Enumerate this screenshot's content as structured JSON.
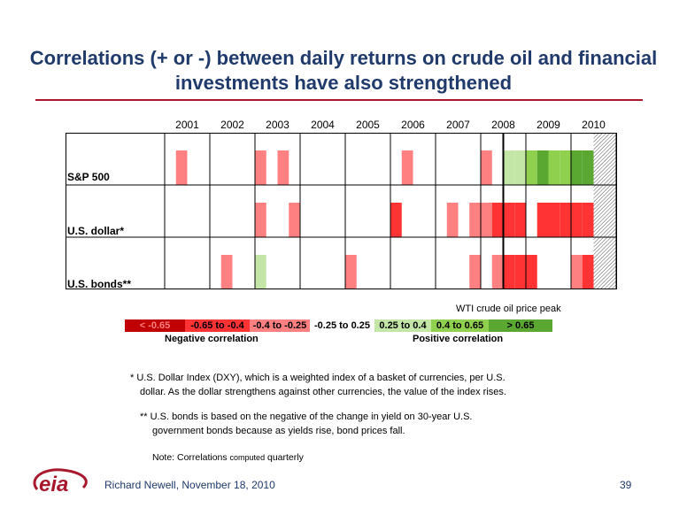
{
  "title": "Correlations (+ or -) between daily returns on crude oil and financial investments have also strengthened",
  "years": [
    "2001",
    "2002",
    "2003",
    "2004",
    "2005",
    "2006",
    "2007",
    "2008",
    "2009",
    "2010"
  ],
  "rows": [
    {
      "label": "S&P 500"
    },
    {
      "label": "U.S. dollar*"
    },
    {
      "label": "U.S. bonds**"
    }
  ],
  "colors": {
    "lt_neg065": "#c00000",
    "neg065_neg04": "#ff3333",
    "neg04_neg025": "#ff8080",
    "neg025_025": "#ffffff",
    "p025_04": "#c3e6a7",
    "p04_065": "#8fd14f",
    "gt065": "#5aa832"
  },
  "chart_data": {
    "type": "heatmap",
    "x": [
      "2001",
      "2002",
      "2003",
      "2004",
      "2005",
      "2006",
      "2007",
      "2008",
      "2009",
      "2010"
    ],
    "y": [
      "S&P 500",
      "U.S. dollar*",
      "U.S. bonds**"
    ],
    "quarters_per_year": 4,
    "cells": [
      {
        "row": "S&P 500",
        "quarter": "2001Q2",
        "category": "-0.4 to -0.25"
      },
      {
        "row": "S&P 500",
        "quarter": "2003Q1",
        "category": "-0.4 to -0.25"
      },
      {
        "row": "S&P 500",
        "quarter": "2003Q3",
        "category": "-0.4 to -0.25"
      },
      {
        "row": "S&P 500",
        "quarter": "2006Q2",
        "category": "-0.4 to -0.25"
      },
      {
        "row": "S&P 500",
        "quarter": "2008Q1",
        "category": "-0.4 to -0.25"
      },
      {
        "row": "S&P 500",
        "quarter": "2008Q3",
        "category": "0.25 to 0.4"
      },
      {
        "row": "S&P 500",
        "quarter": "2008Q4",
        "category": "0.25 to 0.4"
      },
      {
        "row": "S&P 500",
        "quarter": "2009Q1",
        "category": "0.4 to 0.65"
      },
      {
        "row": "S&P 500",
        "quarter": "2009Q2",
        "category": "> 0.65"
      },
      {
        "row": "S&P 500",
        "quarter": "2009Q3",
        "category": "0.4 to 0.65"
      },
      {
        "row": "S&P 500",
        "quarter": "2009Q4",
        "category": "0.4 to 0.65"
      },
      {
        "row": "S&P 500",
        "quarter": "2010Q1",
        "category": "> 0.65"
      },
      {
        "row": "S&P 500",
        "quarter": "2010Q2",
        "category": "> 0.65"
      },
      {
        "row": "U.S. dollar*",
        "quarter": "2003Q1",
        "category": "-0.4 to -0.25"
      },
      {
        "row": "U.S. dollar*",
        "quarter": "2003Q4",
        "category": "-0.4 to -0.25"
      },
      {
        "row": "U.S. dollar*",
        "quarter": "2006Q1",
        "category": "-0.65 to -0.4"
      },
      {
        "row": "U.S. dollar*",
        "quarter": "2007Q2",
        "category": "-0.4 to -0.25"
      },
      {
        "row": "U.S. dollar*",
        "quarter": "2007Q4",
        "category": "-0.4 to -0.25"
      },
      {
        "row": "U.S. dollar*",
        "quarter": "2008Q1",
        "category": "-0.4 to -0.25"
      },
      {
        "row": "U.S. dollar*",
        "quarter": "2008Q2",
        "category": "-0.65 to -0.4"
      },
      {
        "row": "U.S. dollar*",
        "quarter": "2008Q3",
        "category": "-0.65 to -0.4"
      },
      {
        "row": "U.S. dollar*",
        "quarter": "2008Q4",
        "category": "-0.65 to -0.4"
      },
      {
        "row": "U.S. dollar*",
        "quarter": "2009Q2",
        "category": "-0.65 to -0.4"
      },
      {
        "row": "U.S. dollar*",
        "quarter": "2009Q3",
        "category": "-0.65 to -0.4"
      },
      {
        "row": "U.S. dollar*",
        "quarter": "2009Q4",
        "category": "-0.65 to -0.4"
      },
      {
        "row": "U.S. dollar*",
        "quarter": "2010Q1",
        "category": "-0.65 to -0.4"
      },
      {
        "row": "U.S. dollar*",
        "quarter": "2010Q2",
        "category": "-0.65 to -0.4"
      },
      {
        "row": "U.S. bonds**",
        "quarter": "2002Q2",
        "category": "-0.4 to -0.25"
      },
      {
        "row": "U.S. bonds**",
        "quarter": "2003Q1",
        "category": "0.25 to 0.4"
      },
      {
        "row": "U.S. bonds**",
        "quarter": "2005Q1",
        "category": "-0.4 to -0.25"
      },
      {
        "row": "U.S. bonds**",
        "quarter": "2007Q4",
        "category": "-0.4 to -0.25"
      },
      {
        "row": "U.S. bonds**",
        "quarter": "2008Q2",
        "category": "-0.4 to -0.25"
      },
      {
        "row": "U.S. bonds**",
        "quarter": "2008Q3",
        "category": "-0.65 to -0.4"
      },
      {
        "row": "U.S. bonds**",
        "quarter": "2008Q4",
        "category": "-0.65 to -0.4"
      },
      {
        "row": "U.S. bonds**",
        "quarter": "2009Q1",
        "category": "-0.65 to -0.4"
      },
      {
        "row": "U.S. bonds**",
        "quarter": "2010Q1",
        "category": "-0.4 to -0.25"
      },
      {
        "row": "U.S. bonds**",
        "quarter": "2010Q2",
        "category": "-0.65 to -0.4"
      }
    ],
    "hatched_from_quarter": "2010Q3",
    "marker": {
      "quarter_boundary": "2008Q3",
      "label": "WTI crude oil price peak"
    }
  },
  "peak_label": "WTI crude oil price peak",
  "legend": {
    "items": [
      {
        "label": "< -0.65",
        "color": "#c00000",
        "text_color": "#ff8080"
      },
      {
        "label": "-0.65 to -0.4",
        "color": "#ff3333",
        "text_color": "#000000"
      },
      {
        "label": "-0.4 to -0.25",
        "color": "#ff8080",
        "text_color": "#000000"
      },
      {
        "label": "-0.25 to 0.25",
        "color": "#ffffff",
        "text_color": "#000000"
      },
      {
        "label": "0.25 to 0.4",
        "color": "#c3e6a7",
        "text_color": "#000000"
      },
      {
        "label": "0.4 to 0.65",
        "color": "#8fd14f",
        "text_color": "#000000"
      },
      {
        "label": "> 0.65",
        "color": "#5aa832",
        "text_color": "#000000"
      }
    ],
    "negative_caption": "Negative correlation",
    "positive_caption": "Positive correlation"
  },
  "notes": {
    "dollar_line1": "* U.S. Dollar Index (DXY), which is a weighted index of a basket of currencies, per U.S.",
    "dollar_line2": "dollar. As the dollar strengthens against other currencies, the value of the index rises.",
    "bonds_line1": "** U.S. bonds is based on the negative of the change in yield on 30-year U.S.",
    "bonds_line2": "government bonds because as yields rise, bond prices fall.",
    "note_prefix": "Note:  Correlations ",
    "note_small": "computed",
    "note_suffix": " quarterly"
  },
  "footer": {
    "logo_text": "eia",
    "author": "Richard Newell, November 18, 2010",
    "page": "39"
  }
}
